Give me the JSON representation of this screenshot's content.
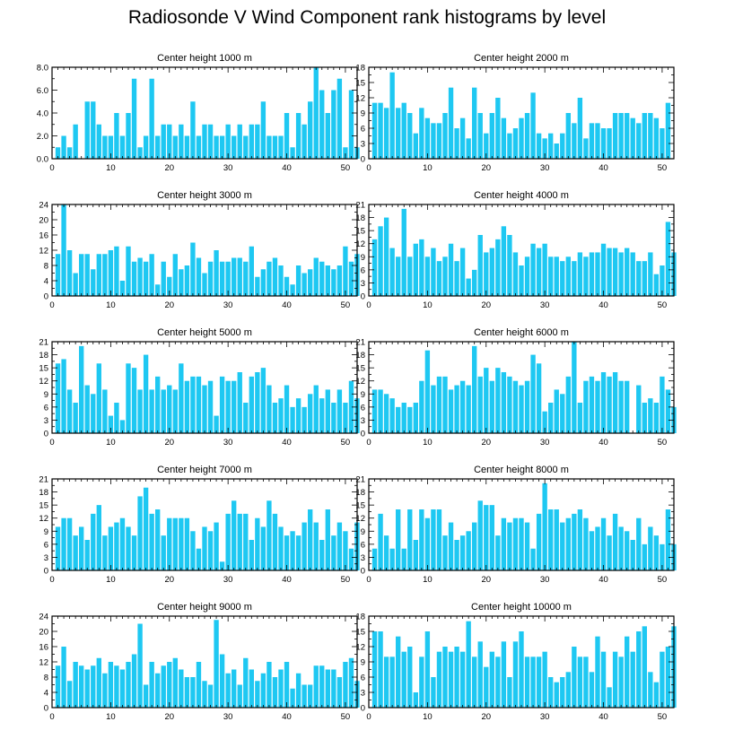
{
  "title": "Radiosonde V Wind Component rank histograms by level",
  "colors": {
    "bar": "#1EC8F2",
    "axis": "#000000",
    "background": "#ffffff"
  },
  "chart_data": [
    {
      "type": "bar",
      "title": "Center height 1000 m",
      "xlim": [
        0,
        52
      ],
      "xticks": [
        0,
        10,
        20,
        30,
        40,
        50
      ],
      "ylim": [
        0,
        8
      ],
      "yticks": [
        "0.0",
        "2.0",
        "4.0",
        "6.0",
        "8.0"
      ],
      "values": [
        1,
        2,
        1,
        3,
        0,
        5,
        5,
        3,
        2,
        2,
        4,
        2,
        4,
        7,
        1,
        2,
        7,
        2,
        3,
        3,
        2,
        3,
        2,
        5,
        2,
        3,
        3,
        2,
        2,
        3,
        2,
        3,
        2,
        3,
        3,
        5,
        2,
        2,
        2,
        4,
        1,
        4,
        3,
        5,
        8,
        6,
        4,
        6,
        7,
        1,
        6,
        1
      ]
    },
    {
      "type": "bar",
      "title": "Center height 2000 m",
      "xlim": [
        0,
        52
      ],
      "xticks": [
        0,
        10,
        20,
        30,
        40,
        50
      ],
      "ylim": [
        0,
        18
      ],
      "yticks": [
        "0",
        "3",
        "6",
        "9",
        "12",
        "15",
        "18"
      ],
      "values": [
        11,
        11,
        10,
        17,
        10,
        11,
        9,
        5,
        10,
        8,
        7,
        7,
        9,
        14,
        6,
        8,
        4,
        14,
        9,
        5,
        9,
        12,
        8,
        5,
        6,
        8,
        9,
        13,
        5,
        4,
        5,
        3,
        5,
        9,
        7,
        12,
        4,
        7,
        7,
        6,
        6,
        9,
        9,
        9,
        8,
        7,
        9,
        9,
        8,
        6,
        11
      ]
    },
    {
      "type": "bar",
      "title": "Center height 3000 m",
      "xlim": [
        0,
        52
      ],
      "xticks": [
        0,
        10,
        20,
        30,
        40,
        50
      ],
      "ylim": [
        0,
        24
      ],
      "yticks": [
        "0",
        "4",
        "8",
        "12",
        "16",
        "20",
        "24"
      ],
      "values": [
        11,
        24,
        12,
        6,
        11,
        11,
        7,
        11,
        11,
        12,
        13,
        4,
        13,
        9,
        10,
        9,
        11,
        3,
        9,
        5,
        11,
        7,
        8,
        14,
        10,
        6,
        9,
        12,
        9,
        9,
        10,
        10,
        9,
        13,
        5,
        7,
        9,
        10,
        8,
        5,
        3,
        8,
        6,
        7,
        10,
        9,
        8,
        7,
        8,
        13,
        9,
        11
      ]
    },
    {
      "type": "bar",
      "title": "Center height 4000 m",
      "xlim": [
        0,
        52
      ],
      "xticks": [
        0,
        10,
        20,
        30,
        40,
        50
      ],
      "ylim": [
        0,
        21
      ],
      "yticks": [
        "0",
        "3",
        "6",
        "9",
        "12",
        "15",
        "18",
        "21"
      ],
      "values": [
        13,
        16,
        18,
        11,
        9,
        20,
        9,
        12,
        13,
        9,
        11,
        8,
        9,
        12,
        8,
        11,
        4,
        6,
        14,
        10,
        11,
        13,
        16,
        14,
        10,
        7,
        9,
        12,
        11,
        12,
        9,
        9,
        8,
        9,
        8,
        10,
        9,
        10,
        10,
        12,
        11,
        11,
        10,
        11,
        10,
        8,
        8,
        10,
        5,
        7,
        17,
        10
      ]
    },
    {
      "type": "bar",
      "title": "Center height 5000 m",
      "xlim": [
        0,
        52
      ],
      "xticks": [
        0,
        10,
        20,
        30,
        40,
        50
      ],
      "ylim": [
        0,
        21
      ],
      "yticks": [
        "0",
        "3",
        "6",
        "9",
        "12",
        "15",
        "18",
        "21"
      ],
      "values": [
        16,
        17,
        10,
        7,
        20,
        11,
        9,
        16,
        10,
        4,
        7,
        3,
        16,
        15,
        10,
        18,
        10,
        13,
        10,
        11,
        10,
        16,
        12,
        13,
        13,
        11,
        12,
        4,
        13,
        12,
        12,
        14,
        7,
        13,
        14,
        15,
        11,
        7,
        8,
        11,
        6,
        8,
        6,
        9,
        11,
        8,
        10,
        7,
        10,
        7,
        12,
        8
      ]
    },
    {
      "type": "bar",
      "title": "Center height 6000 m",
      "xlim": [
        0,
        52
      ],
      "xticks": [
        0,
        10,
        20,
        30,
        40,
        50
      ],
      "ylim": [
        0,
        21
      ],
      "yticks": [
        "0",
        "3",
        "6",
        "9",
        "12",
        "15",
        "18",
        "21"
      ],
      "values": [
        10,
        10,
        9,
        8,
        6,
        7,
        6,
        7,
        12,
        19,
        11,
        13,
        13,
        10,
        11,
        12,
        11,
        20,
        13,
        15,
        12,
        15,
        14,
        13,
        12,
        11,
        12,
        18,
        16,
        5,
        7,
        10,
        9,
        13,
        21,
        7,
        12,
        13,
        12,
        14,
        13,
        14,
        12,
        12,
        0,
        11,
        7,
        8,
        7,
        13,
        10,
        6
      ]
    },
    {
      "type": "bar",
      "title": "Center height 7000 m",
      "xlim": [
        0,
        52
      ],
      "xticks": [
        0,
        10,
        20,
        30,
        40,
        50
      ],
      "ylim": [
        0,
        21
      ],
      "yticks": [
        "0",
        "3",
        "6",
        "9",
        "12",
        "15",
        "18",
        "21"
      ],
      "values": [
        10,
        12,
        12,
        8,
        10,
        7,
        13,
        15,
        8,
        10,
        11,
        12,
        10,
        8,
        17,
        19,
        13,
        14,
        8,
        12,
        12,
        12,
        12,
        9,
        5,
        10,
        9,
        11,
        2,
        13,
        16,
        13,
        13,
        7,
        12,
        10,
        16,
        13,
        10,
        8,
        9,
        8,
        11,
        14,
        11,
        7,
        14,
        8,
        11,
        9,
        5,
        11
      ]
    },
    {
      "type": "bar",
      "title": "Center height 8000 m",
      "xlim": [
        0,
        52
      ],
      "xticks": [
        0,
        10,
        20,
        30,
        40,
        50
      ],
      "ylim": [
        0,
        21
      ],
      "yticks": [
        "0",
        "3",
        "6",
        "9",
        "12",
        "15",
        "18",
        "21"
      ],
      "values": [
        5,
        13,
        8,
        5,
        14,
        5,
        14,
        7,
        14,
        12,
        14,
        14,
        8,
        11,
        7,
        8,
        9,
        11,
        16,
        15,
        15,
        8,
        12,
        11,
        12,
        12,
        11,
        5,
        13,
        20,
        14,
        14,
        11,
        12,
        13,
        14,
        12,
        9,
        10,
        12,
        8,
        13,
        10,
        9,
        7,
        12,
        6,
        10,
        8,
        6,
        14,
        6
      ]
    },
    {
      "type": "bar",
      "title": "Center height 9000 m",
      "xlim": [
        0,
        52
      ],
      "xticks": [
        0,
        10,
        20,
        30,
        40,
        50
      ],
      "ylim": [
        0,
        24
      ],
      "yticks": [
        "0",
        "4",
        "8",
        "12",
        "16",
        "20",
        "24"
      ],
      "values": [
        11,
        16,
        7,
        12,
        11,
        10,
        11,
        13,
        9,
        12,
        11,
        10,
        12,
        14,
        22,
        6,
        12,
        9,
        11,
        12,
        13,
        10,
        8,
        8,
        12,
        7,
        6,
        23,
        14,
        9,
        10,
        6,
        13,
        10,
        7,
        9,
        12,
        8,
        10,
        12,
        5,
        9,
        6,
        6,
        11,
        11,
        10,
        10,
        8,
        12,
        13,
        7
      ]
    },
    {
      "type": "bar",
      "title": "Center height 10000 m",
      "xlim": [
        0,
        52
      ],
      "xticks": [
        0,
        10,
        20,
        30,
        40,
        50
      ],
      "ylim": [
        0,
        18
      ],
      "yticks": [
        "0",
        "3",
        "6",
        "9",
        "12",
        "15",
        "18"
      ],
      "values": [
        15,
        15,
        10,
        10,
        14,
        11,
        12,
        3,
        10,
        15,
        6,
        11,
        12,
        11,
        12,
        11,
        17,
        10,
        13,
        8,
        11,
        10,
        13,
        6,
        13,
        15,
        10,
        10,
        10,
        11,
        6,
        5,
        6,
        7,
        12,
        10,
        10,
        7,
        14,
        11,
        4,
        11,
        10,
        14,
        11,
        15,
        16,
        7,
        5,
        11,
        12,
        16
      ]
    }
  ]
}
